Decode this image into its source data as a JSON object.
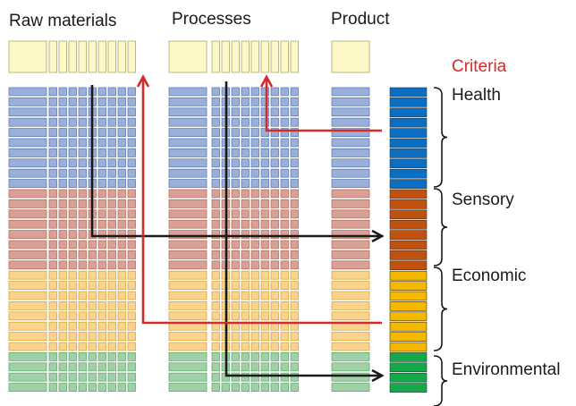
{
  "headers": {
    "raw_materials": "Raw materials",
    "processes": "Processes",
    "product": "Product"
  },
  "criteria_label": "Criteria",
  "categories": [
    {
      "name": "Health",
      "rows": 10,
      "fill": "#9BB0D8",
      "stroke": "#5F7CB8",
      "criteria_color": "#0A6FC2"
    },
    {
      "name": "Sensory",
      "rows": 8,
      "fill": "#D9A095",
      "stroke": "#B8705F",
      "criteria_color": "#C0510F"
    },
    {
      "name": "Economic",
      "rows": 8,
      "fill": "#FAD38C",
      "stroke": "#D9A63C",
      "criteria_color": "#F5B800"
    },
    {
      "name": "Environmental",
      "rows": 4,
      "fill": "#9FD0A6",
      "stroke": "#63AA70",
      "criteria_color": "#15A84A"
    }
  ],
  "colors": {
    "header_fill": "#FDF8C8",
    "header_stroke": "#BDB77A",
    "flow_black": "#1a1a1a",
    "flow_red": "#D42A2A",
    "criteria_text": "#D42A2A"
  }
}
